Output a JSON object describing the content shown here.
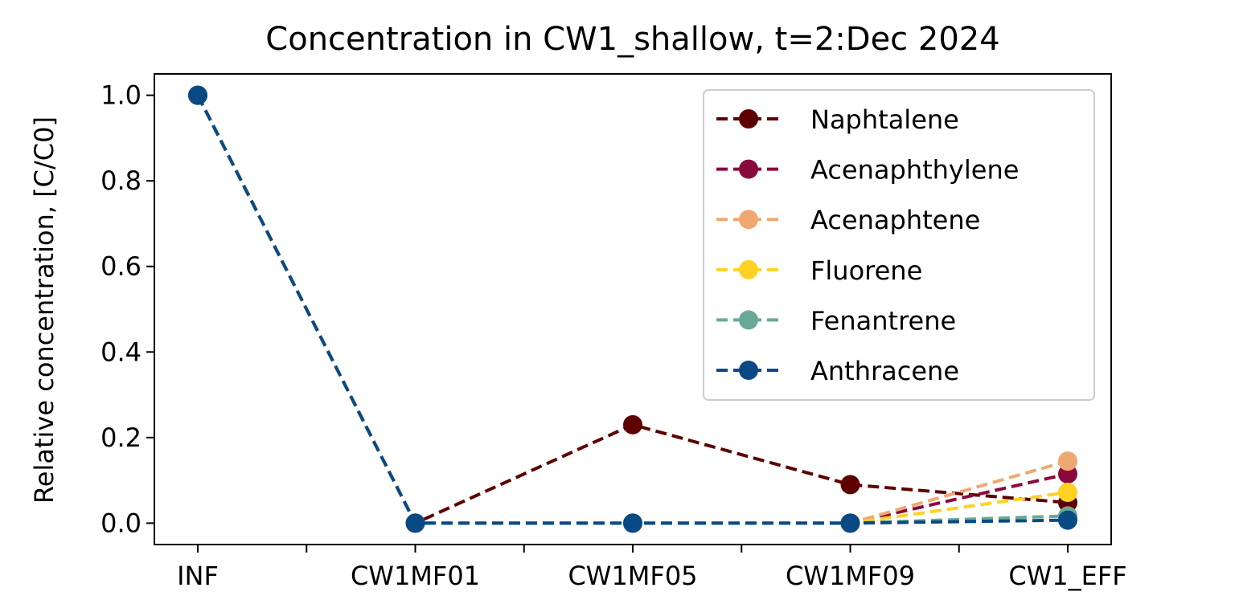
{
  "chart_data": {
    "type": "line",
    "title": "Concentration in CW1_shallow, t=2:Dec 2024",
    "xlabel": "",
    "ylabel": "Relative concentration, [C/C0]",
    "categories": [
      "INF",
      "CW1MF01",
      "CW1MF05",
      "CW1MF09",
      "CW1_EFF"
    ],
    "ylim": [
      -0.05,
      1.05
    ],
    "yticks": [
      0.0,
      0.2,
      0.4,
      0.6,
      0.8,
      1.0
    ],
    "ytick_labels": [
      "0.0",
      "0.2",
      "0.4",
      "0.6",
      "0.8",
      "1.0"
    ],
    "grid": false,
    "legend_position": "top-right",
    "series": [
      {
        "name": "Naphtalene",
        "color": "#5e0000",
        "values": [
          1.0,
          0.0,
          0.23,
          0.09,
          0.048
        ]
      },
      {
        "name": "Acenaphthylene",
        "color": "#8b0a3e",
        "values": [
          1.0,
          0.0,
          0.0,
          0.0,
          0.115
        ]
      },
      {
        "name": "Acenaphtene",
        "color": "#f0a872",
        "values": [
          1.0,
          0.0,
          0.0,
          0.0,
          0.145
        ]
      },
      {
        "name": "Fluorene",
        "color": "#fdd225",
        "values": [
          1.0,
          0.0,
          0.0,
          0.0,
          0.072
        ]
      },
      {
        "name": "Fenantrene",
        "color": "#69a898",
        "values": [
          1.0,
          0.0,
          0.0,
          0.0,
          0.017
        ]
      },
      {
        "name": "Anthracene",
        "color": "#094a84",
        "values": [
          1.0,
          0.0,
          0.0,
          0.0,
          0.007
        ]
      }
    ]
  }
}
